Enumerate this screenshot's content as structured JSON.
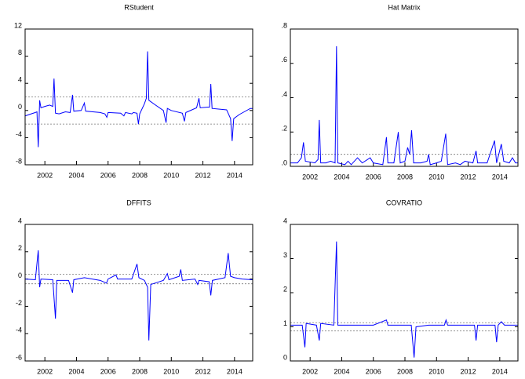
{
  "chart_data": [
    {
      "type": "line",
      "title": "RStudent",
      "color": "#0000ff",
      "x": [
        2000.75,
        2001.0,
        2001.4,
        2001.5,
        2001.58,
        2001.67,
        2001.75,
        2002.0,
        2002.3,
        2002.5,
        2002.58,
        2002.67,
        2002.9,
        2003.3,
        2003.6,
        2003.75,
        2003.83,
        2004.3,
        2004.5,
        2004.58,
        2005.5,
        2005.8,
        2005.92,
        2006.0,
        2006.8,
        2007.0,
        2007.1,
        2007.5,
        2007.6,
        2007.83,
        2007.92,
        2008.0,
        2008.3,
        2008.42,
        2008.5,
        2008.58,
        2009.0,
        2009.5,
        2009.67,
        2009.75,
        2010.0,
        2010.7,
        2010.83,
        2010.92,
        2011.6,
        2011.75,
        2011.83,
        2012.3,
        2012.42,
        2012.5,
        2012.58,
        2013.5,
        2013.75,
        2013.85,
        2013.95,
        2014.3,
        2015.0,
        2015.15
      ],
      "values": [
        -0.8,
        -0.6,
        -0.3,
        -0.2,
        -5.4,
        1.5,
        0.4,
        0.6,
        0.8,
        0.6,
        4.7,
        -0.4,
        -0.5,
        -0.2,
        -0.3,
        2.3,
        -0.1,
        0.0,
        1.1,
        -0.1,
        -0.3,
        -0.5,
        -1.0,
        -0.3,
        -0.4,
        -0.8,
        -0.3,
        -0.5,
        -0.3,
        -0.4,
        -2.0,
        -0.5,
        1.0,
        1.8,
        8.7,
        1.5,
        0.8,
        0.0,
        -1.8,
        0.3,
        0.0,
        -0.4,
        -1.6,
        -0.3,
        0.4,
        1.8,
        0.4,
        0.5,
        0.5,
        3.9,
        0.3,
        0.1,
        -1.2,
        -4.5,
        -1.2,
        -0.6,
        0.3,
        0.3
      ],
      "hlines": [
        2,
        -2
      ],
      "xlim": [
        2000.75,
        2015.15
      ],
      "xticks": [
        2002,
        2004,
        2006,
        2008,
        2010,
        2012,
        2014
      ],
      "ylim": [
        -8,
        12
      ],
      "yticks": [
        -8,
        -4,
        0,
        4,
        8,
        12
      ]
    },
    {
      "type": "line",
      "title": "Hat Matrix",
      "color": "#0000ff",
      "x": [
        2000.75,
        2001.2,
        2001.45,
        2001.58,
        2001.7,
        2002.3,
        2002.5,
        2002.58,
        2002.67,
        2003.0,
        2003.3,
        2003.58,
        2003.67,
        2003.75,
        2004.2,
        2004.4,
        2004.6,
        2005.0,
        2005.3,
        2005.8,
        2006.0,
        2006.6,
        2006.83,
        2006.92,
        2007.3,
        2007.58,
        2007.7,
        2008.0,
        2008.17,
        2008.3,
        2008.42,
        2008.55,
        2009.0,
        2009.4,
        2009.5,
        2009.6,
        2010.0,
        2010.3,
        2010.58,
        2010.7,
        2011.2,
        2011.5,
        2011.8,
        2012.3,
        2012.5,
        2012.6,
        2013.2,
        2013.67,
        2013.8,
        2014.1,
        2014.25,
        2014.6,
        2014.8,
        2015.0,
        2015.15
      ],
      "values": [
        0.02,
        0.02,
        0.05,
        0.14,
        0.03,
        0.02,
        0.04,
        0.27,
        0.02,
        0.02,
        0.03,
        0.02,
        0.7,
        0.02,
        0.01,
        0.03,
        0.01,
        0.05,
        0.02,
        0.05,
        0.02,
        0.01,
        0.17,
        0.02,
        0.02,
        0.2,
        0.02,
        0.03,
        0.11,
        0.07,
        0.21,
        0.02,
        0.02,
        0.03,
        0.07,
        0.01,
        0.02,
        0.03,
        0.19,
        0.01,
        0.02,
        0.01,
        0.03,
        0.02,
        0.09,
        0.02,
        0.02,
        0.15,
        0.02,
        0.13,
        0.03,
        0.02,
        0.05,
        0.02,
        0.02
      ],
      "hlines": [
        0.07
      ],
      "xlim": [
        2000.75,
        2015.15
      ],
      "xticks": [
        2002,
        2004,
        2006,
        2008,
        2010,
        2012,
        2014
      ],
      "ylim": [
        0,
        0.8
      ],
      "yticks": [
        {
          "value": 0,
          "label": ".0"
        },
        {
          "value": 0.2,
          "label": ".2"
        },
        {
          "value": 0.4,
          "label": ".4"
        },
        {
          "value": 0.6,
          "label": ".6"
        },
        {
          "value": 0.8,
          "label": ".8"
        }
      ]
    },
    {
      "type": "line",
      "title": "DFFITS",
      "color": "#0000ff",
      "x": [
        2000.75,
        2001.4,
        2001.58,
        2001.67,
        2001.75,
        2002.5,
        2002.67,
        2002.75,
        2003.5,
        2003.75,
        2003.83,
        2004.5,
        2005.5,
        2005.9,
        2006.0,
        2006.5,
        2006.6,
        2007.5,
        2007.83,
        2007.95,
        2008.3,
        2008.5,
        2008.58,
        2008.7,
        2009.5,
        2009.75,
        2009.85,
        2010.5,
        2010.6,
        2010.7,
        2011.5,
        2011.67,
        2011.75,
        2012.4,
        2012.5,
        2012.6,
        2013.4,
        2013.6,
        2013.75,
        2014.0,
        2014.5,
        2015.15
      ],
      "values": [
        0.0,
        -0.05,
        2.1,
        -0.6,
        0.0,
        -0.05,
        -2.9,
        -0.1,
        -0.1,
        -1.0,
        -0.05,
        0.1,
        -0.1,
        -0.3,
        0.0,
        0.3,
        0.0,
        0.0,
        1.1,
        0.1,
        -0.1,
        -0.6,
        -4.5,
        -0.4,
        -0.1,
        0.4,
        -0.05,
        0.2,
        0.7,
        -0.1,
        0.0,
        -0.4,
        -0.1,
        -0.2,
        -1.2,
        -0.1,
        0.1,
        1.9,
        0.2,
        0.1,
        0.0,
        -0.05
      ],
      "hlines": [
        0.35,
        -0.35
      ],
      "xlim": [
        2000.75,
        2015.15
      ],
      "xticks": [
        2002,
        2004,
        2006,
        2008,
        2010,
        2012,
        2014
      ],
      "ylim": [
        -6,
        4
      ],
      "yticks": [
        -6,
        -4,
        -2,
        0,
        2,
        4
      ]
    },
    {
      "type": "line",
      "title": "COVRATIO",
      "color": "#0000ff",
      "x": [
        2000.75,
        2001.5,
        2001.67,
        2001.75,
        2002.4,
        2002.58,
        2002.67,
        2003.5,
        2003.67,
        2003.75,
        2005.0,
        2006.0,
        2006.83,
        2006.92,
        2008.4,
        2008.58,
        2008.7,
        2009.5,
        2010.5,
        2010.6,
        2010.7,
        2012.4,
        2012.5,
        2012.6,
        2013.7,
        2013.8,
        2013.9,
        2014.1,
        2014.3,
        2015.15
      ],
      "values": [
        1.05,
        1.05,
        0.4,
        1.1,
        1.05,
        0.6,
        1.1,
        1.05,
        3.5,
        1.05,
        1.05,
        1.05,
        1.2,
        1.05,
        1.05,
        0.1,
        1.0,
        1.05,
        1.05,
        1.2,
        1.05,
        1.05,
        0.6,
        1.05,
        1.05,
        0.55,
        1.05,
        1.15,
        1.05,
        1.05
      ],
      "hlines": [
        1.12,
        0.88
      ],
      "xlim": [
        2000.75,
        2015.15
      ],
      "xticks": [
        2002,
        2004,
        2006,
        2008,
        2010,
        2012,
        2014
      ],
      "ylim": [
        0,
        4
      ],
      "yticks": [
        0,
        1,
        2,
        3,
        4
      ]
    }
  ]
}
